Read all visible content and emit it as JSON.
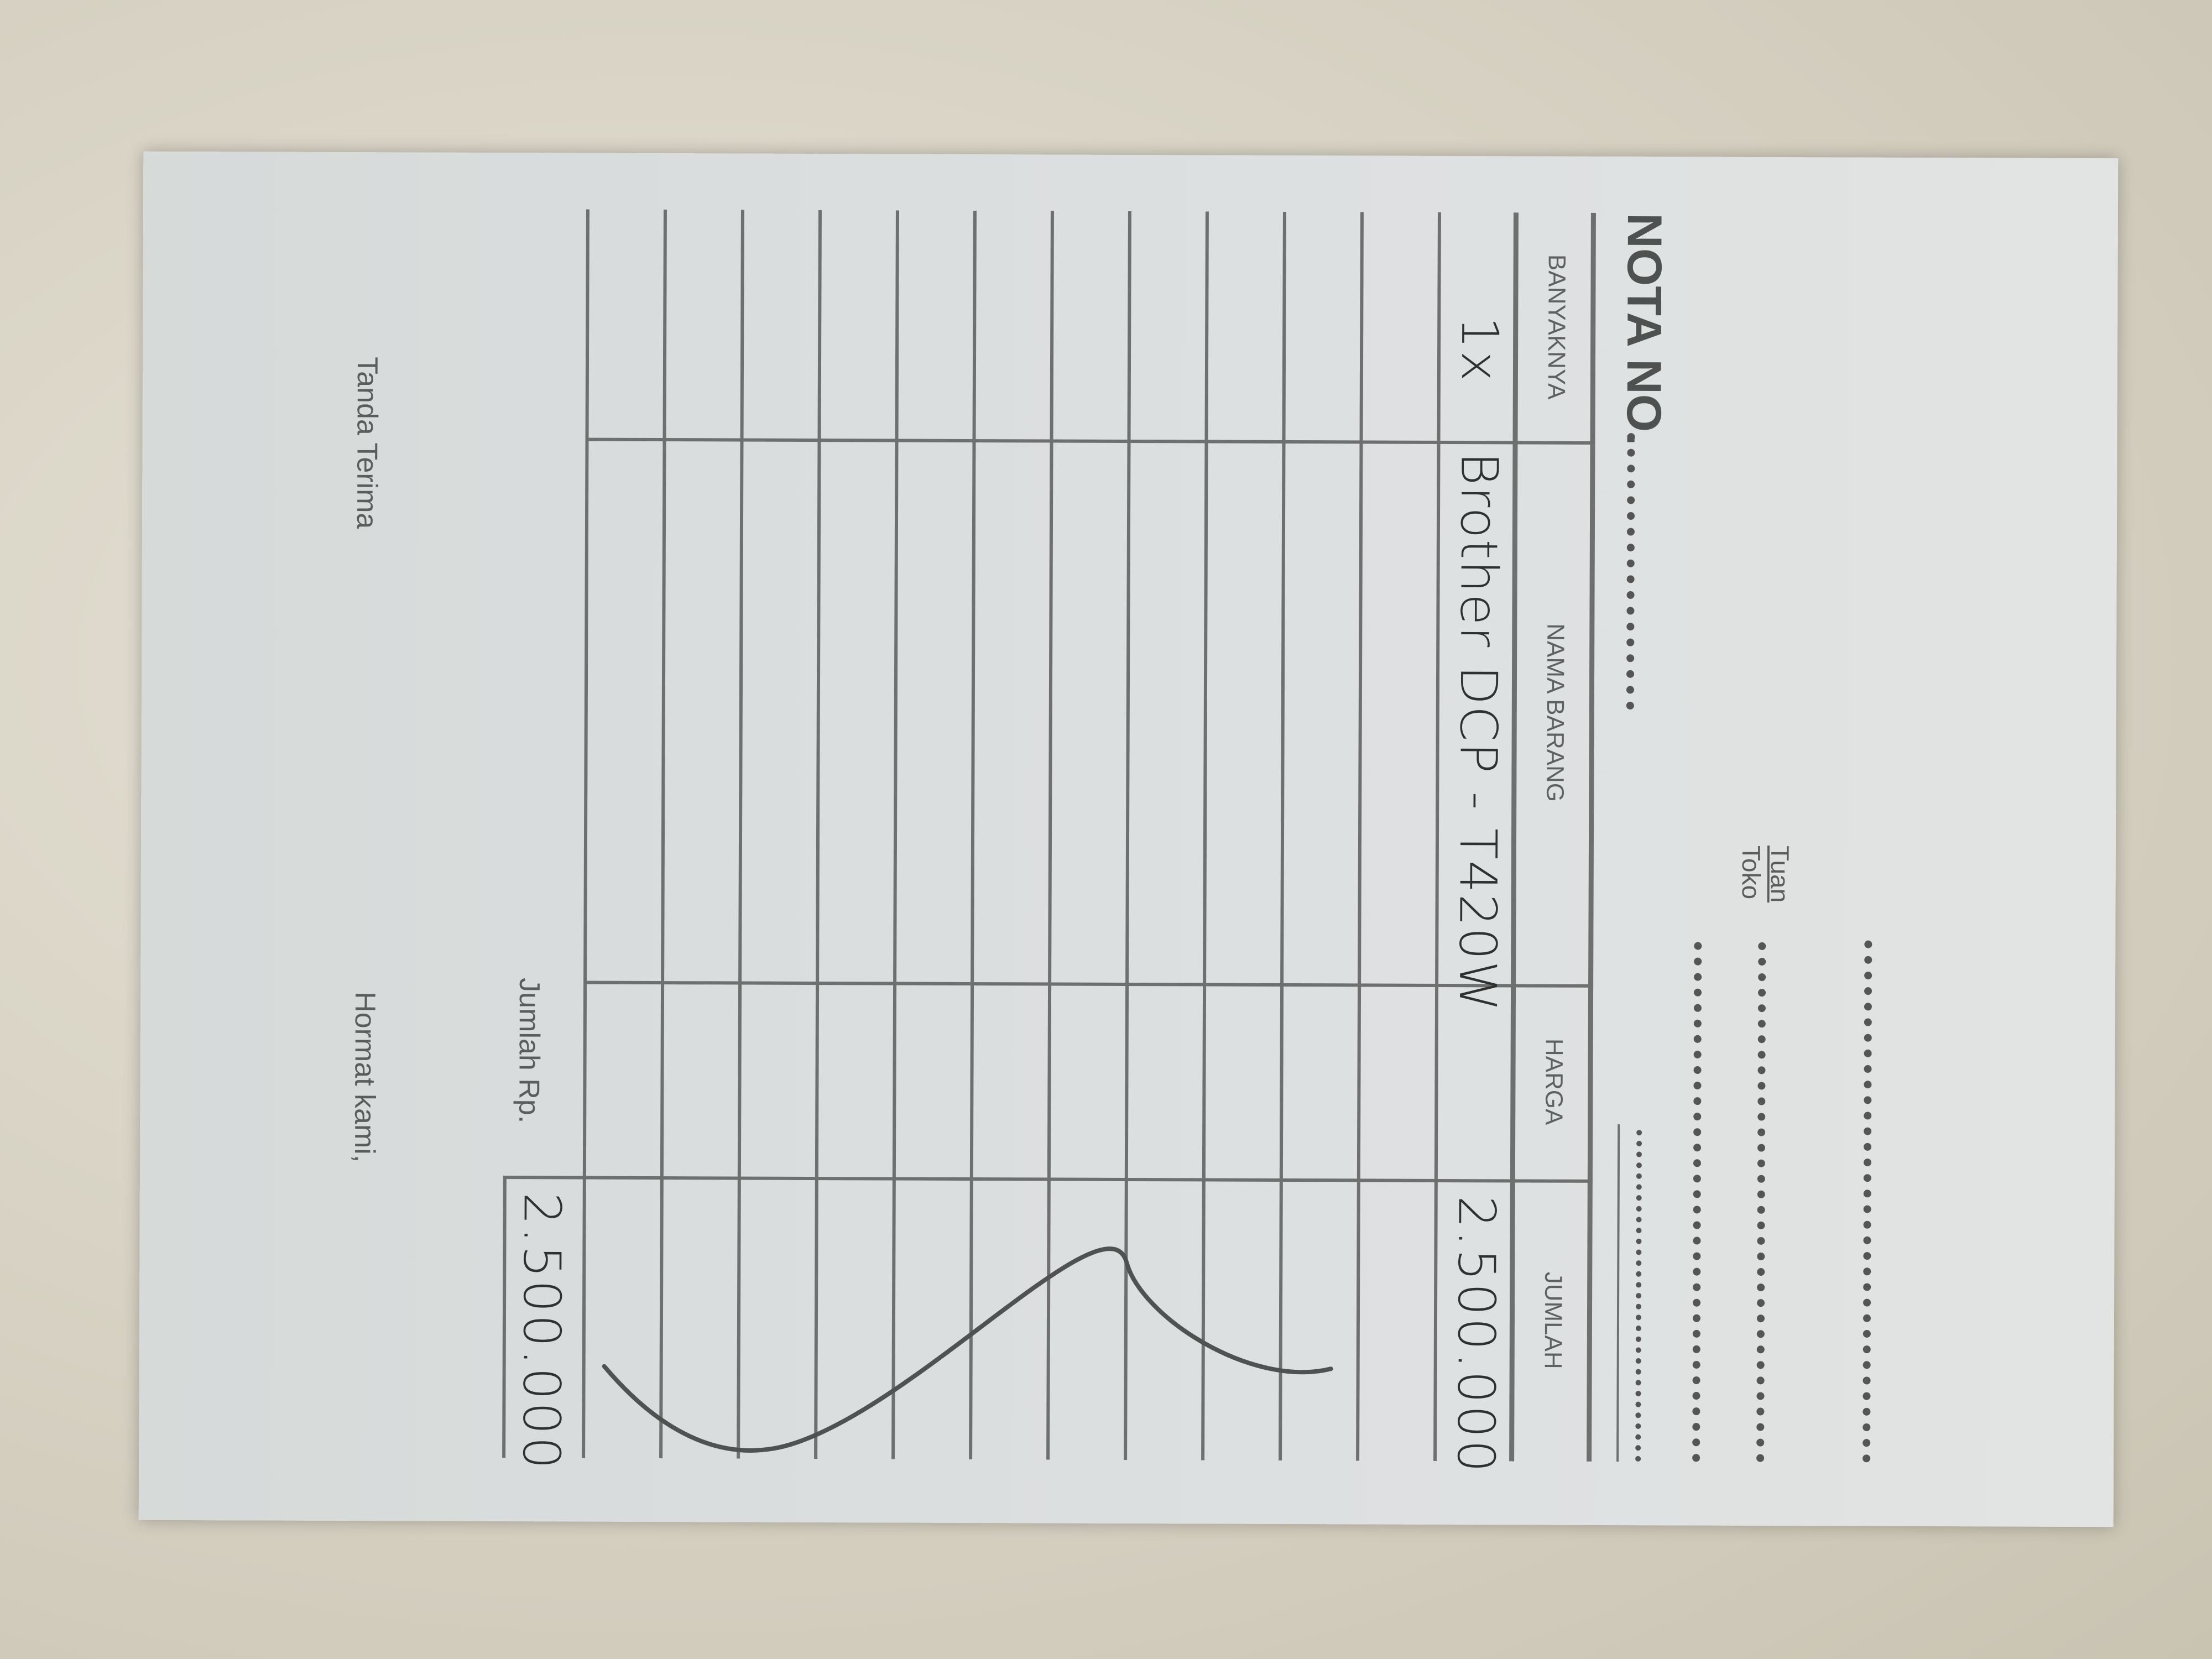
{
  "header": {
    "title": "NOTA NO.",
    "recipient_label_top": "Tuan",
    "recipient_label_bottom": "Toko"
  },
  "table": {
    "columns": [
      "BANYAKNYA",
      "NAMA BARANG",
      "HARGA",
      "JUMLAH"
    ],
    "rows": [
      {
        "banyaknya": "1x",
        "nama_barang": "Brother DCP - T420W",
        "harga": "",
        "jumlah": "2.500.000"
      }
    ],
    "empty_rows": 11
  },
  "total": {
    "label": "Jumlah Rp.",
    "value": "2.500.000"
  },
  "footer": {
    "receiver_label": "Tanda Terima",
    "sender_label": "Hormat kami,"
  },
  "colors": {
    "paper": "#dcdfe0",
    "print_ink": "#5d5f5f",
    "pen_ink": "#2f3131",
    "background": "#d6d1c2"
  }
}
